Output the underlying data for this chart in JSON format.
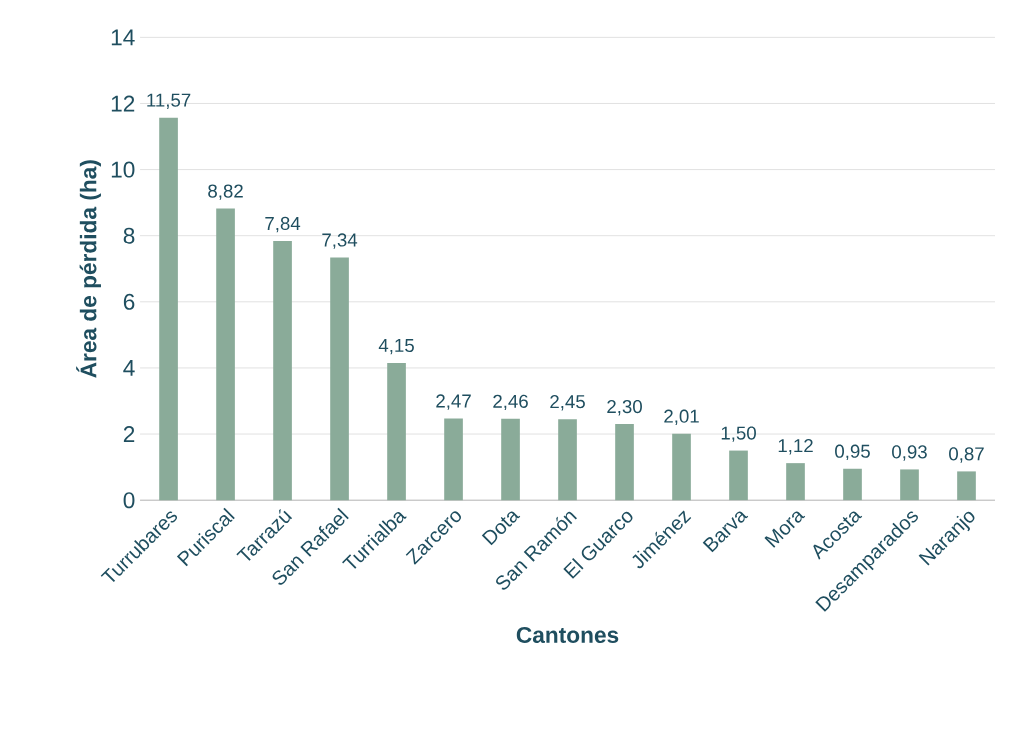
{
  "chart_data": {
    "type": "bar",
    "xlabel": "Cantones",
    "ylabel": "Área de pérdida (ha)",
    "categories": [
      "Turrubares",
      "Puriscal",
      "Tarrazú",
      "San Rafael",
      "Turrialba",
      "Zarcero",
      "Dota",
      "San Ramón",
      "El Guarco",
      "Jiménez",
      "Barva",
      "Mora",
      "Acosta",
      "Desamparados",
      "Naranjo"
    ],
    "values": [
      11.57,
      8.82,
      7.84,
      7.34,
      4.15,
      2.47,
      2.46,
      2.45,
      2.3,
      2.01,
      1.5,
      1.12,
      0.95,
      0.93,
      0.87
    ],
    "value_labels": [
      "11,57",
      "8,82",
      "7,84",
      "7,34",
      "4,15",
      "2,47",
      "2,46",
      "2,45",
      "2,30",
      "2,01",
      "1,50",
      "1,12",
      "0,95",
      "0,93",
      "0,87"
    ],
    "color": "#8aab99",
    "ylim": [
      0,
      14
    ],
    "yticks": [
      0,
      2,
      4,
      6,
      8,
      10,
      12,
      14
    ],
    "grid": "y"
  }
}
